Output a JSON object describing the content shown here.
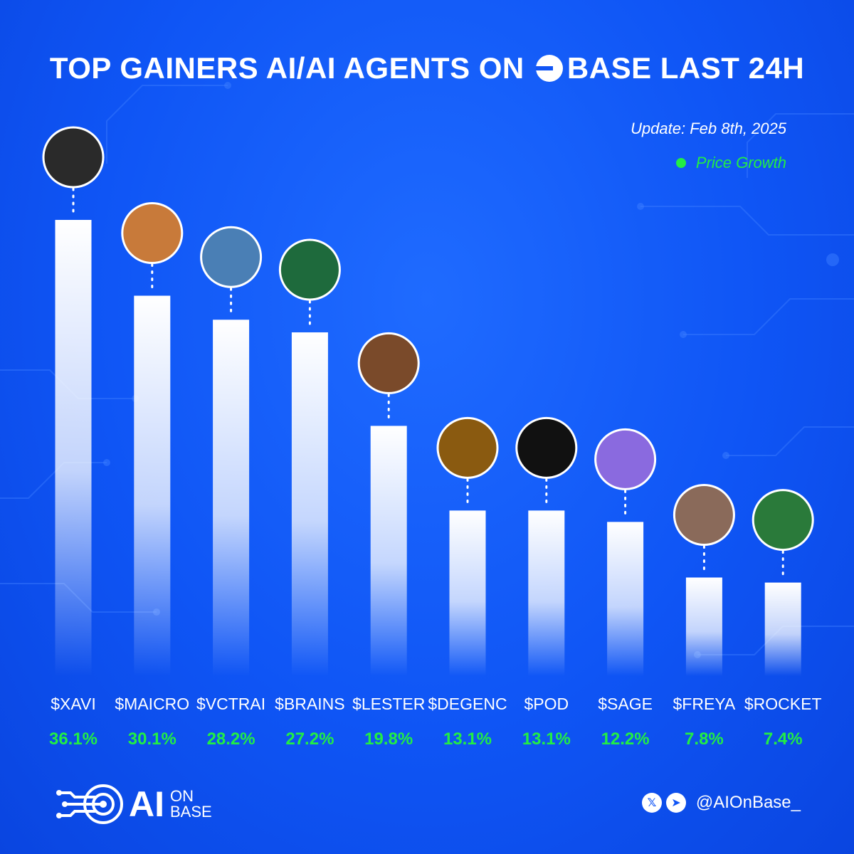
{
  "title": {
    "before": "TOP GAINERS AI/AI AGENTS ON",
    "after": "BASE LAST 24H",
    "logo_icon": "base-chain-logo-icon"
  },
  "update_text": "Update: Feb 8th, 2025",
  "legend_label": "Price Growth",
  "colors": {
    "background": "#1155f5",
    "bar_top": "#ffffff",
    "value_text": "#22ee44",
    "accent": "#22ee44"
  },
  "chart_data": {
    "type": "bar",
    "title": "TOP GAINERS AI/AI AGENTS ON BASE LAST 24H",
    "categories": [
      "$XAVI",
      "$MAICRO",
      "$VCTRAI",
      "$BRAINS",
      "$LESTER",
      "$DEGENC",
      "$POD",
      "$SAGE",
      "$FREYA",
      "$ROCKET"
    ],
    "series": [
      {
        "name": "Price Growth",
        "values": [
          36.1,
          30.1,
          28.2,
          27.2,
          19.8,
          13.1,
          13.1,
          12.2,
          7.8,
          7.4
        ],
        "labels": [
          "36.1%",
          "30.1%",
          "28.2%",
          "27.2%",
          "19.8%",
          "13.1%",
          "13.1%",
          "12.2%",
          "7.8%",
          "7.4%"
        ]
      }
    ],
    "unit": "%",
    "grid": false,
    "legend_position": "top-right",
    "avatars": [
      "hooded-hacker-avatar",
      "sunglasses-man-avatar",
      "anime-girl-avatar",
      "pink-brain-avatar",
      "bald-man-avatar",
      "gold-coin-avatar",
      "dark-swirl-avatar",
      "wizard-avatar",
      "warrior-woman-avatar",
      "green-frog-avatar"
    ]
  },
  "footer": {
    "brand_ai": "AI",
    "brand_on": "ON",
    "brand_base": "BASE",
    "x_icon": "x-logo-icon",
    "telegram_icon": "telegram-icon",
    "handle": "@AIOnBase_"
  }
}
